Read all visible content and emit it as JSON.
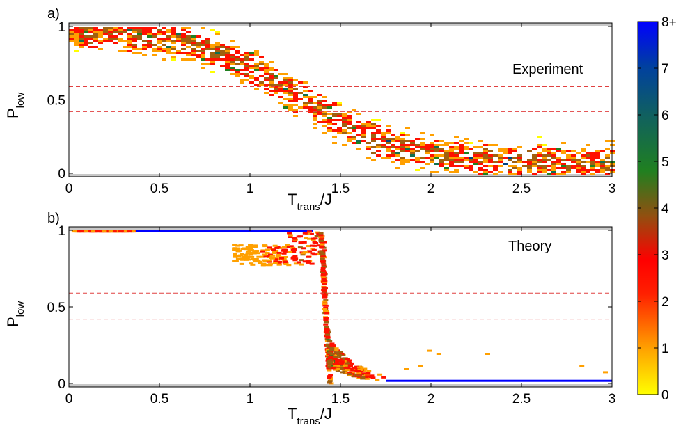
{
  "chart_data": [
    {
      "type": "heatmap",
      "panel_label": "a)",
      "annotation": "Experiment",
      "xlabel_main": "T",
      "xlabel_sub": "trans",
      "xlabel_tail": "/J",
      "ylabel_main": "P",
      "ylabel_sub": "low",
      "xlim": [
        0,
        3
      ],
      "ylim": [
        0,
        1
      ],
      "xticks": [
        "0",
        "0.5",
        "1",
        "1.5",
        "2",
        "2.5",
        "3"
      ],
      "yticks": [
        "0",
        "0.5",
        "1"
      ],
      "reference_lines": [
        0.42,
        0.59
      ],
      "reference_line_color": "#e04040",
      "description_of_distribution": "broad sigmoidal cloud: P_low ~1 at T<0.6, decreasing through 0.5 near T~1.3, reaching ~0.1 at T>2",
      "counts_range": [
        0,
        8
      ]
    },
    {
      "type": "heatmap",
      "panel_label": "b)",
      "annotation": "Theory",
      "xlabel_main": "T",
      "xlabel_sub": "trans",
      "xlabel_tail": "/J",
      "ylabel_main": "P",
      "ylabel_sub": "low",
      "xlim": [
        0,
        3
      ],
      "ylim": [
        0,
        1
      ],
      "xticks": [
        "0",
        "0.5",
        "1",
        "1.5",
        "2",
        "2.5",
        "3"
      ],
      "yticks": [
        "0",
        "0.5",
        "1"
      ],
      "reference_lines": [
        0.42,
        0.59
      ],
      "reference_line_color": "#e04040",
      "saturated_bands": [
        {
          "x": [
            0.35,
            1.35
          ],
          "y": 0.995
        },
        {
          "x": [
            1.75,
            3.0
          ],
          "y": 0.015
        }
      ],
      "transition_x": 1.4,
      "counts_range": [
        0,
        8
      ]
    }
  ],
  "colorbar": {
    "ticks": [
      "0",
      "1",
      "2",
      "3",
      "4",
      "5",
      "6",
      "7",
      "8+"
    ],
    "colors": [
      "#ffff00",
      "#ffa000",
      "#ff1000",
      "#a06010",
      "#208020",
      "#107050",
      "#004080",
      "#0020c0",
      "#0000ff"
    ]
  }
}
